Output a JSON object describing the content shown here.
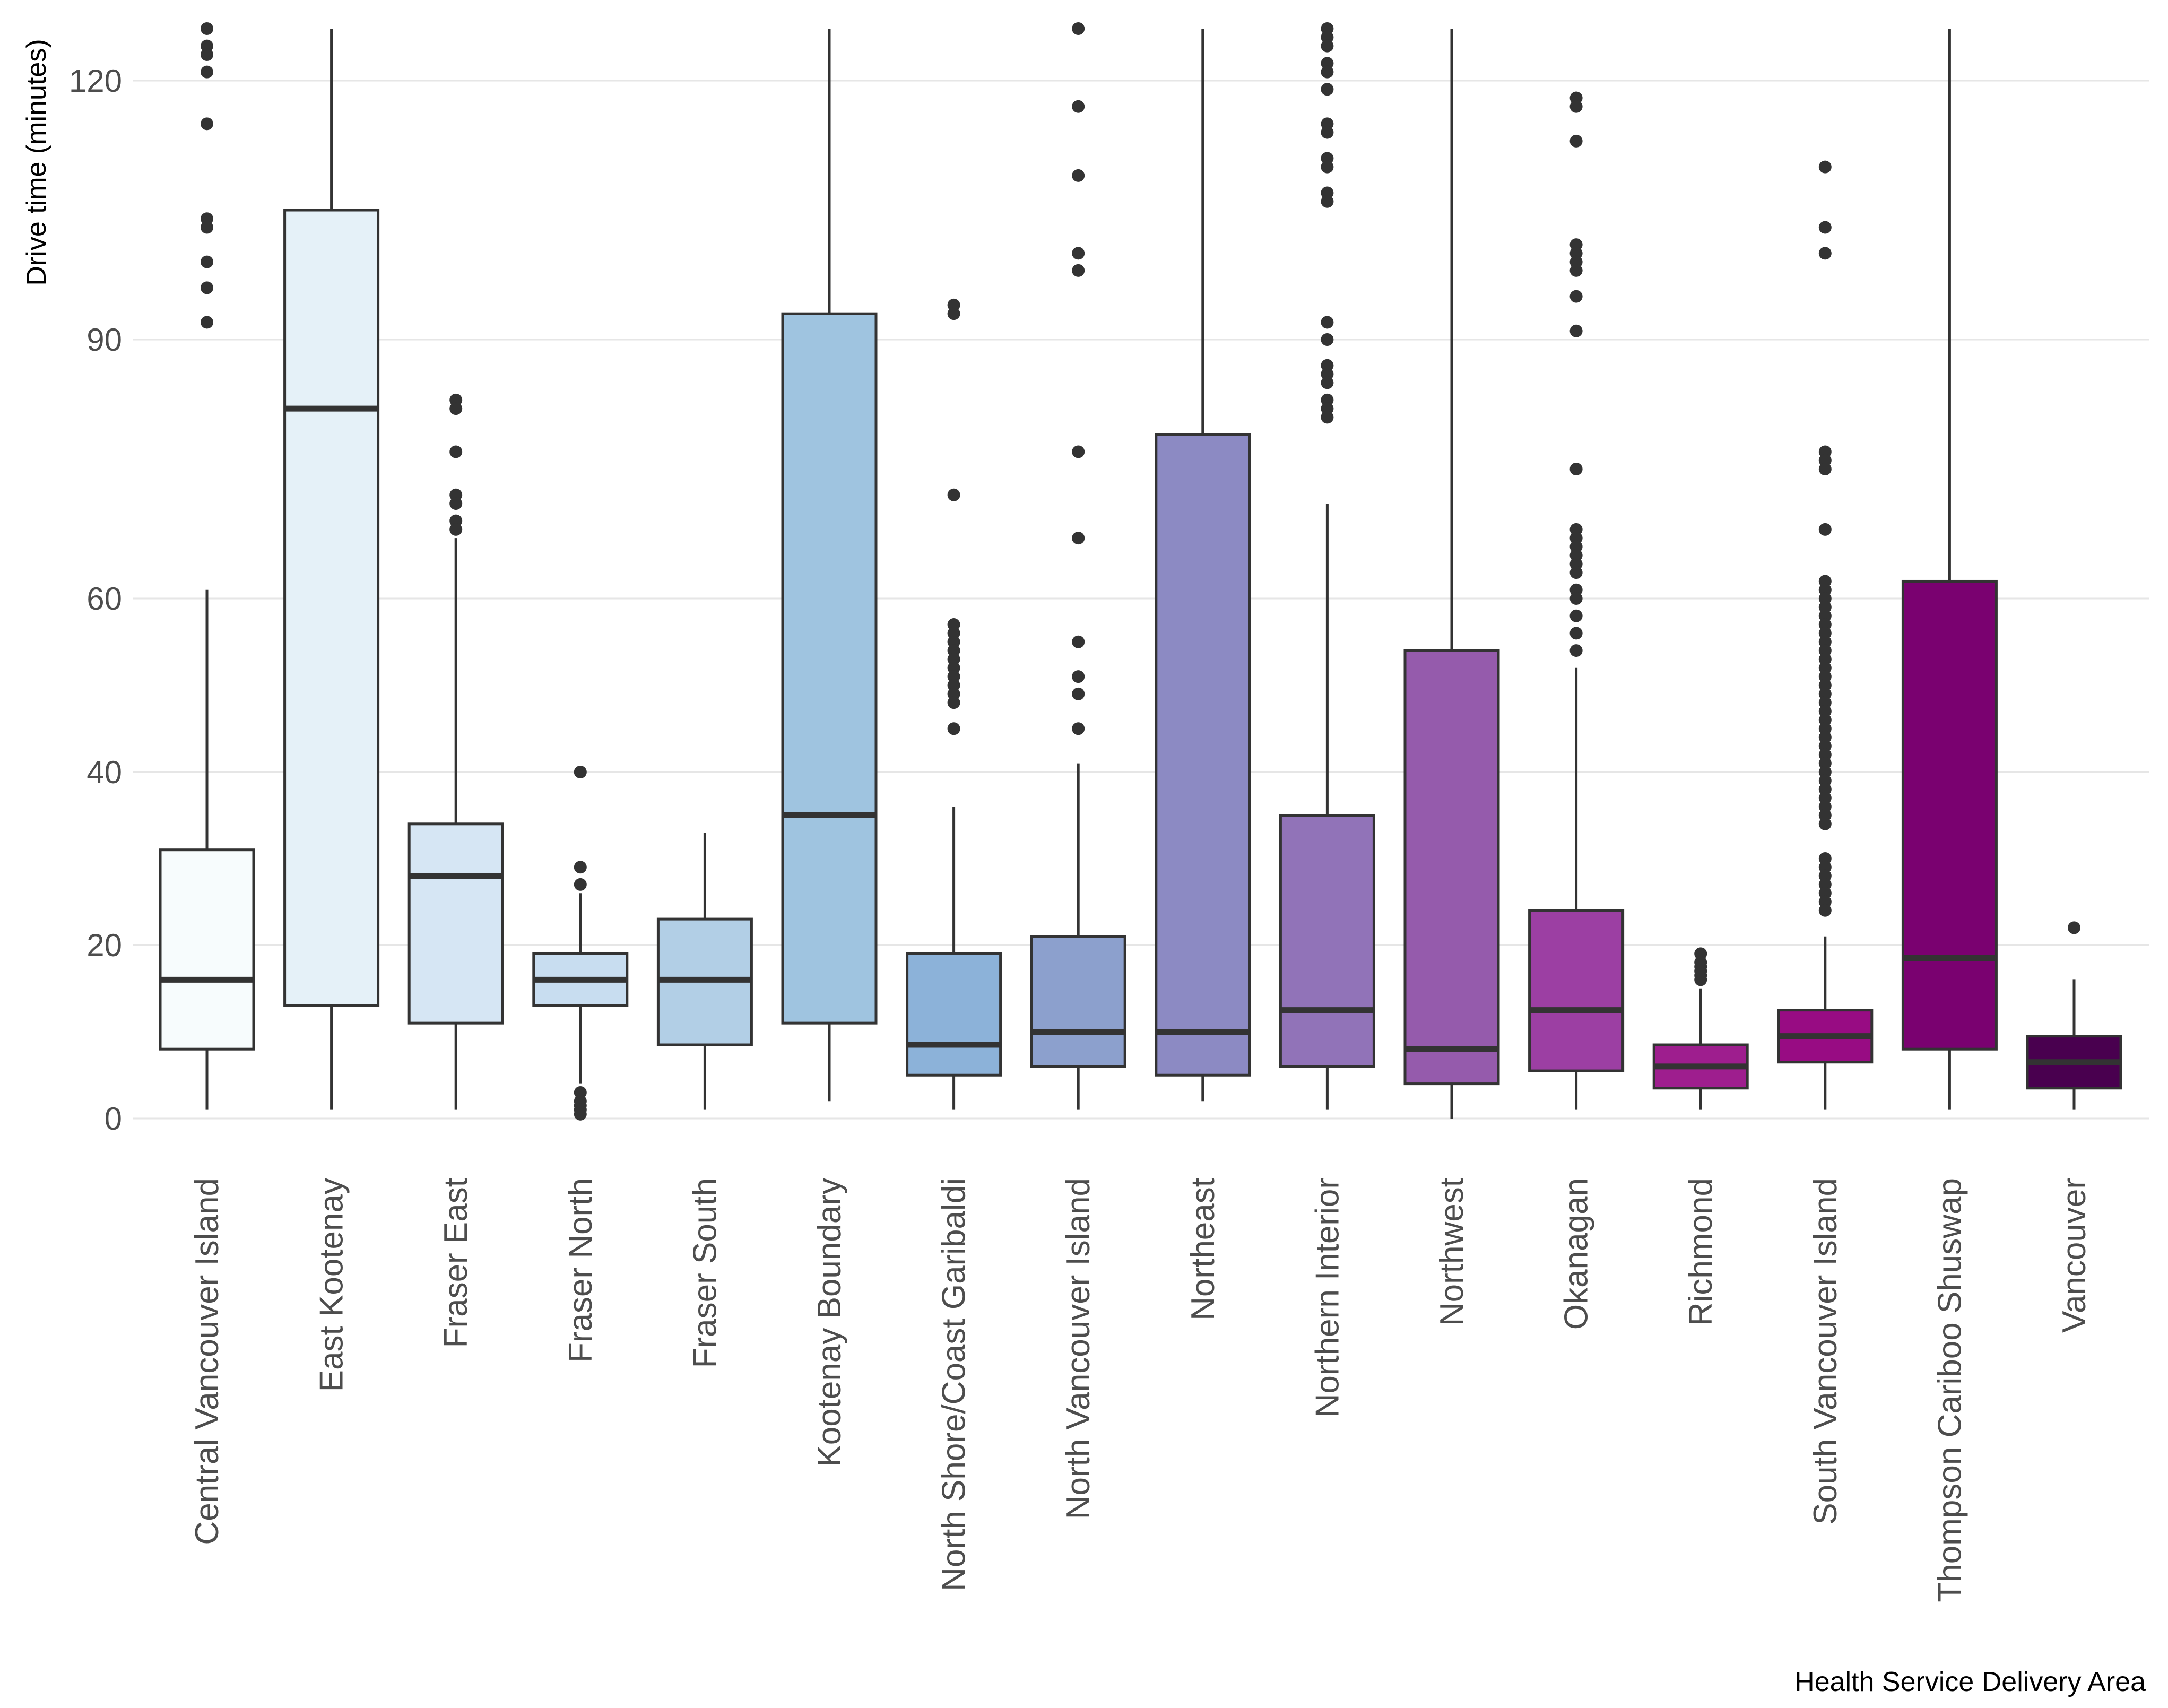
{
  "chart_data": {
    "type": "box",
    "title": "",
    "xlabel": "Health Service Delivery Area",
    "ylabel": "Drive time (minutes)",
    "ylim": [
      0,
      126
    ],
    "yticks": [
      0,
      20,
      40,
      60,
      90,
      120
    ],
    "grid": true,
    "legend": "none",
    "categories": [
      "Central Vancouver Island",
      "East Kootenay",
      "Fraser East",
      "Fraser North",
      "Fraser South",
      "Kootenay Boundary",
      "North Shore/Coast Garibaldi",
      "North Vancouver Island",
      "Northeast",
      "Northern Interior",
      "Northwest",
      "Okanagan",
      "Richmond",
      "South Vancouver Island",
      "Thompson Cariboo Shuswap",
      "Vancouver"
    ],
    "series": [
      {
        "name": "Central Vancouver Island",
        "color": "#f7fcfd",
        "whisker_low": 1,
        "q1": 8,
        "median": 16,
        "q3": 31,
        "whisker_high": 61,
        "outliers": [
          126,
          124,
          123,
          121,
          115,
          104,
          103,
          99,
          96,
          92
        ]
      },
      {
        "name": "East Kootenay",
        "color": "#e5f1f8",
        "whisker_low": 1,
        "q1": 13,
        "median": 82,
        "q3": 105,
        "whisker_high": 126,
        "outliers": []
      },
      {
        "name": "Fraser East",
        "color": "#d6e6f4",
        "whisker_low": 1,
        "q1": 11,
        "median": 28,
        "q3": 34,
        "whisker_high": 67,
        "outliers": [
          83,
          82,
          77,
          72,
          71,
          69,
          68
        ]
      },
      {
        "name": "Fraser North",
        "color": "#c8ddf0",
        "whisker_low": 4,
        "q1": 13,
        "median": 16,
        "q3": 19,
        "whisker_high": 26,
        "outliers": [
          40,
          29,
          27,
          3,
          2,
          1.5,
          1,
          0.5
        ]
      },
      {
        "name": "Fraser South",
        "color": "#b2cfe6",
        "whisker_low": 1,
        "q1": 8.5,
        "median": 16,
        "q3": 23,
        "whisker_high": 33,
        "outliers": []
      },
      {
        "name": "Kootenay Boundary",
        "color": "#9fc4e0",
        "whisker_low": 2,
        "q1": 11,
        "median": 35,
        "q3": 93,
        "whisker_high": 126,
        "outliers": []
      },
      {
        "name": "North Shore/Coast Garibaldi",
        "color": "#8cb2d9",
        "whisker_low": 1,
        "q1": 5,
        "median": 8.5,
        "q3": 19,
        "whisker_high": 36,
        "outliers": [
          94,
          93,
          72,
          57,
          56,
          55,
          54,
          53,
          52,
          51,
          50,
          49,
          48,
          45
        ]
      },
      {
        "name": "North Vancouver Island",
        "color": "#8ca0cd",
        "whisker_low": 1,
        "q1": 6,
        "median": 10,
        "q3": 21,
        "whisker_high": 41,
        "outliers": [
          126,
          117,
          109,
          100,
          98,
          77,
          67,
          55,
          51,
          49,
          45
        ]
      },
      {
        "name": "Northeast",
        "color": "#8c8ac3",
        "whisker_low": 2,
        "q1": 5,
        "median": 10,
        "q3": 79,
        "whisker_high": 126,
        "outliers": []
      },
      {
        "name": "Northern Interior",
        "color": "#9173b8",
        "whisker_low": 1,
        "q1": 6,
        "median": 12.5,
        "q3": 35,
        "whisker_high": 71,
        "outliers": [
          126,
          125,
          124,
          122,
          121,
          119,
          115,
          114,
          111,
          110,
          107,
          106,
          92,
          90,
          87,
          86,
          85,
          83,
          82,
          81
        ]
      },
      {
        "name": "Northwest",
        "color": "#955bac",
        "whisker_low": 0,
        "q1": 4,
        "median": 8,
        "q3": 54,
        "whisker_high": 126,
        "outliers": []
      },
      {
        "name": "Okanagan",
        "color": "#9c3fa3",
        "whisker_low": 1,
        "q1": 5.5,
        "median": 12.5,
        "q3": 24,
        "whisker_high": 52,
        "outliers": [
          118,
          117,
          113,
          101,
          100,
          99,
          98,
          95,
          91,
          75,
          68,
          67,
          66,
          65,
          64,
          63,
          61,
          60,
          58,
          56,
          54
        ]
      },
      {
        "name": "Richmond",
        "color": "#9e1e8e",
        "whisker_low": 1,
        "q1": 3.5,
        "median": 6,
        "q3": 8.5,
        "whisker_high": 15,
        "outliers": [
          19,
          18,
          17.5,
          17,
          16.5,
          16
        ]
      },
      {
        "name": "South Vancouver Island",
        "color": "#980c83",
        "whisker_low": 1,
        "q1": 6.5,
        "median": 9.5,
        "q3": 12.5,
        "whisker_high": 21,
        "outliers": [
          110,
          103,
          100,
          77,
          76,
          75,
          68,
          62,
          61,
          60,
          59,
          58,
          57,
          56,
          55,
          54,
          53,
          52,
          51,
          50,
          49,
          48,
          47,
          46,
          45,
          44,
          43,
          42,
          41,
          40,
          39,
          38,
          37,
          36,
          35,
          34,
          30,
          29,
          28,
          27,
          26,
          25,
          24
        ]
      },
      {
        "name": "Thompson Cariboo Shuswap",
        "color": "#7a0170",
        "whisker_low": 1,
        "q1": 8,
        "median": 18.5,
        "q3": 62,
        "whisker_high": 126,
        "outliers": []
      },
      {
        "name": "Vancouver",
        "color": "#49004f",
        "whisker_low": 1,
        "q1": 3.5,
        "median": 6.5,
        "q3": 9.5,
        "whisker_high": 16,
        "outliers": [
          22
        ]
      }
    ]
  }
}
